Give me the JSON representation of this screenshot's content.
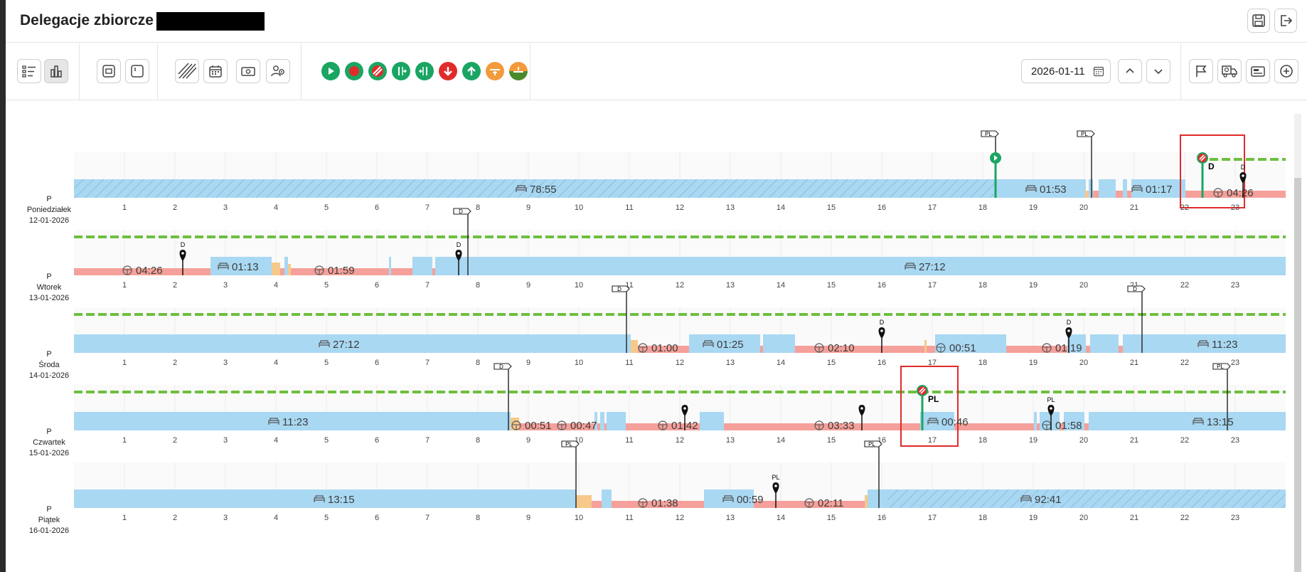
{
  "header": {
    "title": "Delegacje zbiorcze  -",
    "save_icon": "save-icon",
    "logout_icon": "logout-icon"
  },
  "toolbar": {
    "date_value": "2026-01-11",
    "status_colors": {
      "start": "#1aa563",
      "stop": "#e02b2b",
      "border": "#1aa563",
      "down": "#e02b2b",
      "up": "#1aa563",
      "ferry_orange": "#f39a3c",
      "ferry_green": "#4a8a2a"
    }
  },
  "colors": {
    "rest": "#a9d8f2",
    "drive": "#f5a09a",
    "work": "#f6c98a",
    "green_line": "#6dbf3f",
    "flag_green": "#1aa563",
    "highlight_red": "#e02b2b"
  },
  "hour_ticks": [
    "1",
    "2",
    "3",
    "4",
    "5",
    "6",
    "7",
    "8",
    "9",
    "10",
    "11",
    "12",
    "13",
    "14",
    "15",
    "16",
    "17",
    "18",
    "19",
    "20",
    "21",
    "22",
    "23"
  ],
  "days": [
    {
      "letter": "P",
      "name": "Poniedziałek",
      "date": "12-01-2026",
      "labels": [
        {
          "h": 9.2,
          "type": "rest",
          "text": "78:55"
        },
        {
          "h": 19.3,
          "type": "rest",
          "text": "01:53"
        },
        {
          "h": 21.4,
          "type": "rest",
          "text": "01:17"
        },
        {
          "h": 23.0,
          "type": "drive",
          "text": "04:26"
        }
      ],
      "flags": [
        {
          "h": 18.25,
          "text": "PL"
        },
        {
          "h": 20.15,
          "text": "PL"
        }
      ],
      "pins": [
        {
          "h": 23.15,
          "text": "D"
        }
      ],
      "markers": [
        {
          "h": 18.25,
          "kind": "start",
          "text": ""
        },
        {
          "h": 22.35,
          "kind": "border",
          "text": "D"
        }
      ]
    },
    {
      "letter": "P",
      "name": "Wtorek",
      "date": "13-01-2026",
      "labels": [
        {
          "h": 1.4,
          "type": "drive",
          "text": "04:26"
        },
        {
          "h": 3.3,
          "type": "rest",
          "text": "01:13"
        },
        {
          "h": 5.2,
          "type": "drive",
          "text": "01:59"
        },
        {
          "h": 16.9,
          "type": "rest",
          "text": "27:12"
        }
      ],
      "flags": [
        {
          "h": 7.8,
          "text": "D"
        }
      ],
      "pins": [
        {
          "h": 2.15,
          "text": "D"
        },
        {
          "h": 7.62,
          "text": "D"
        }
      ],
      "markers": []
    },
    {
      "letter": "P",
      "name": "Środa",
      "date": "14-01-2026",
      "labels": [
        {
          "h": 5.3,
          "type": "rest",
          "text": "27:12"
        },
        {
          "h": 11.6,
          "type": "drive",
          "text": "01:00"
        },
        {
          "h": 12.9,
          "type": "rest",
          "text": "01:25"
        },
        {
          "h": 15.1,
          "type": "drive",
          "text": "02:10"
        },
        {
          "h": 17.5,
          "type": "drive",
          "text": "00:51"
        },
        {
          "h": 19.6,
          "type": "drive",
          "text": "01:19"
        },
        {
          "h": 22.7,
          "type": "rest",
          "text": "11:23"
        }
      ],
      "flags": [
        {
          "h": 10.95,
          "text": "D"
        },
        {
          "h": 21.15,
          "text": "D"
        }
      ],
      "pins": [
        {
          "h": 16.0,
          "text": "D"
        },
        {
          "h": 19.7,
          "text": "D"
        }
      ],
      "markers": []
    },
    {
      "letter": "P",
      "name": "Czwartek",
      "date": "15-01-2026",
      "labels": [
        {
          "h": 4.3,
          "type": "rest",
          "text": "11:23"
        },
        {
          "h": 9.1,
          "type": "drive",
          "text": "00:51"
        },
        {
          "h": 10.0,
          "type": "drive",
          "text": "00:47"
        },
        {
          "h": 12.0,
          "type": "drive",
          "text": "01:42"
        },
        {
          "h": 15.1,
          "type": "drive",
          "text": "03:33"
        },
        {
          "h": 17.35,
          "type": "rest",
          "text": "00:46"
        },
        {
          "h": 19.6,
          "type": "drive",
          "text": "01:58"
        },
        {
          "h": 22.6,
          "type": "rest",
          "text": "13:15"
        }
      ],
      "flags": [
        {
          "h": 8.6,
          "text": "D"
        },
        {
          "h": 22.85,
          "text": "PL"
        }
      ],
      "pins": [
        {
          "h": 12.1,
          "text": ""
        },
        {
          "h": 15.6,
          "text": ""
        },
        {
          "h": 19.35,
          "text": "PL"
        }
      ],
      "markers": [
        {
          "h": 16.8,
          "kind": "border",
          "text": "PL"
        }
      ]
    },
    {
      "letter": "P",
      "name": "Piątek",
      "date": "16-01-2026",
      "labels": [
        {
          "h": 5.2,
          "type": "rest",
          "text": "13:15"
        },
        {
          "h": 11.6,
          "type": "drive",
          "text": "01:38"
        },
        {
          "h": 13.3,
          "type": "rest",
          "text": "00:59"
        },
        {
          "h": 14.9,
          "type": "drive",
          "text": "02:11"
        },
        {
          "h": 19.2,
          "type": "rest",
          "text": "92:41"
        }
      ],
      "flags": [
        {
          "h": 9.95,
          "text": "PL"
        },
        {
          "h": 15.95,
          "text": "PL"
        }
      ],
      "pins": [
        {
          "h": 13.9,
          "text": "PL"
        }
      ],
      "markers": []
    }
  ]
}
